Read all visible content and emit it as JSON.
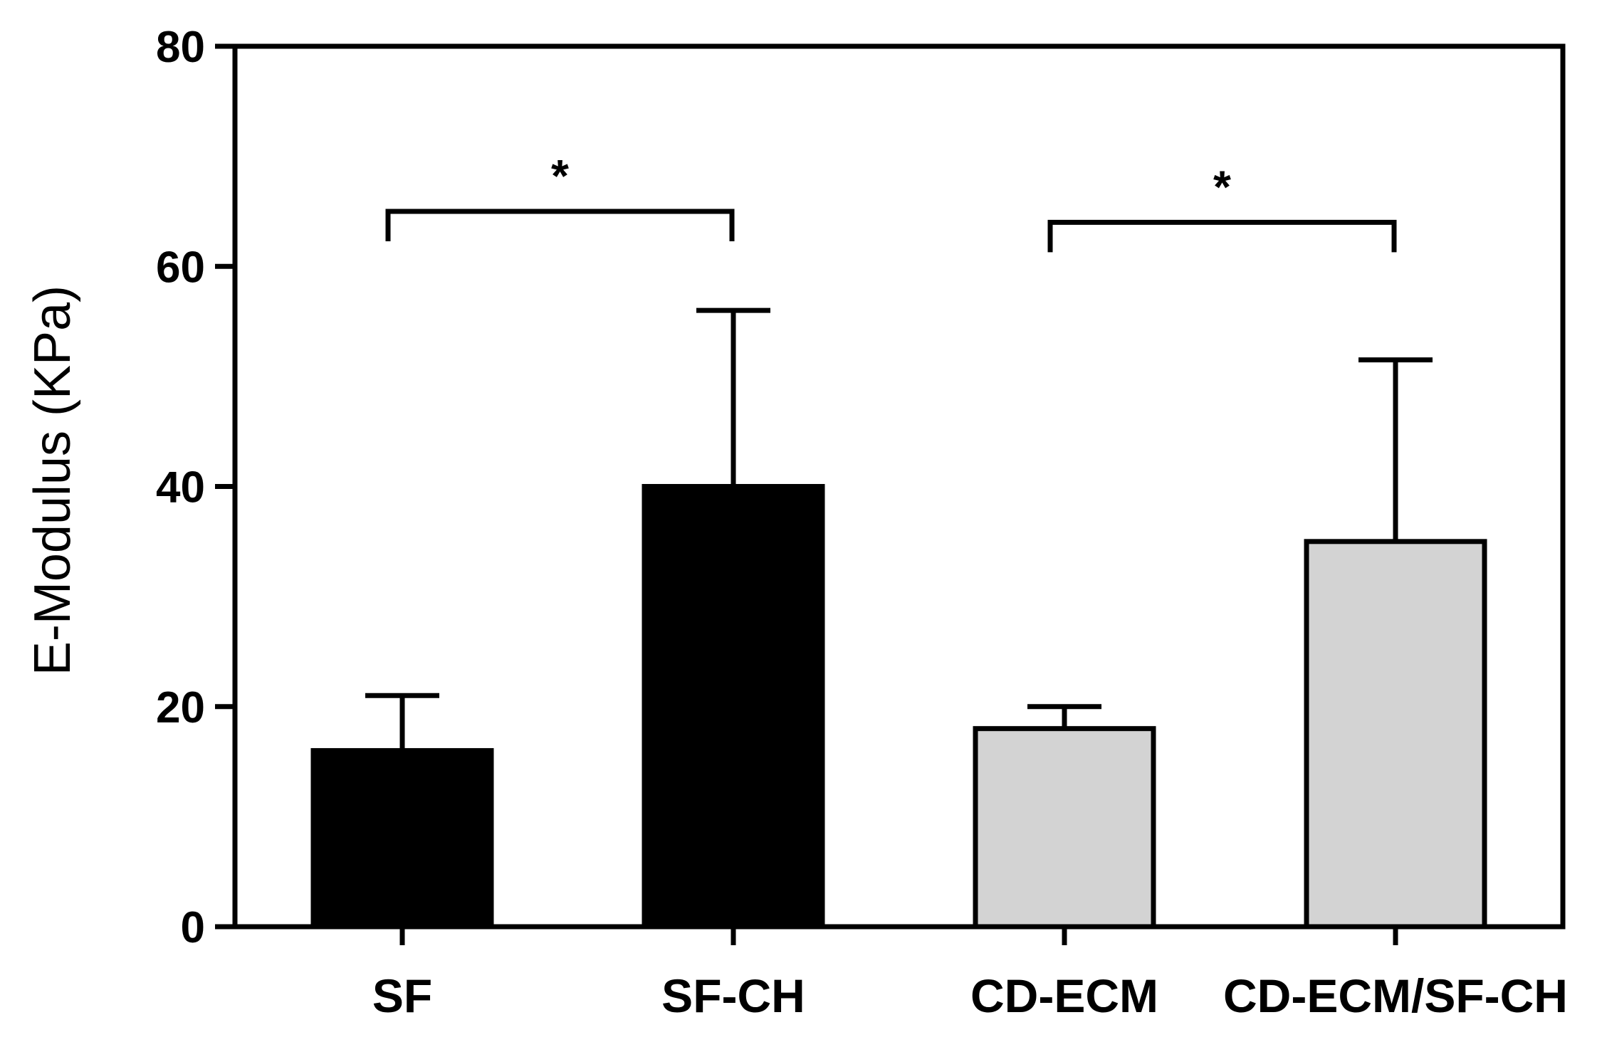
{
  "chart_data": {
    "type": "bar",
    "title": "",
    "xlabel": "",
    "ylabel": "E-Modulus (KPa)",
    "ylim": [
      0,
      80
    ],
    "yticks": [
      0,
      20,
      40,
      60,
      80
    ],
    "grid": false,
    "categories": [
      "SF",
      "SF-CH",
      "CD-ECM",
      "CD-ECM/SF-CH"
    ],
    "values": [
      16,
      40,
      18,
      35
    ],
    "errors": [
      5,
      16,
      2,
      16.5
    ],
    "bar_colors": [
      "#000000",
      "#000000",
      "#d3d3d3",
      "#d3d3d3"
    ],
    "significance": [
      {
        "from": 0,
        "to": 1,
        "label": "*",
        "level": 65
      },
      {
        "from": 2,
        "to": 3,
        "label": "*",
        "level": 64
      }
    ]
  }
}
